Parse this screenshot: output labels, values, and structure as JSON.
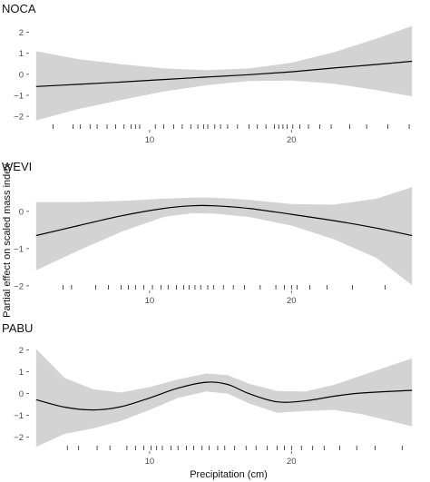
{
  "chart_data": [
    {
      "type": "line",
      "title": "NOCA",
      "xlabel": "",
      "ylabel": "",
      "xlim": [
        1.5,
        29
      ],
      "ylim": [
        -2.6,
        2.5
      ],
      "yticks": [
        -2,
        -1,
        0,
        1,
        2
      ],
      "xticks": [
        10,
        20
      ],
      "fit": {
        "x": [
          2,
          5,
          8,
          11,
          14,
          17,
          20,
          23,
          26,
          28.5
        ],
        "y": [
          -0.58,
          -0.48,
          -0.37,
          -0.25,
          -0.13,
          -0.02,
          0.12,
          0.3,
          0.47,
          0.62
        ]
      },
      "ci_upper": [
        1.1,
        0.72,
        0.48,
        0.28,
        0.2,
        0.28,
        0.55,
        1.05,
        1.7,
        2.3
      ],
      "ci_lower": [
        -2.2,
        -1.65,
        -1.22,
        -0.82,
        -0.52,
        -0.32,
        -0.3,
        -0.45,
        -0.75,
        -1.05
      ],
      "rug": [
        3.2,
        4.6,
        5.1,
        5.8,
        6.3,
        7.0,
        7.6,
        8.2,
        8.7,
        9.0,
        9.3,
        10.4,
        11.0,
        11.7,
        12.3,
        12.9,
        13.4,
        13.8,
        14.1,
        14.6,
        15.0,
        15.5,
        16.2,
        17.0,
        17.6,
        18.2,
        18.8,
        19.1,
        19.4,
        19.7,
        20.1,
        20.6,
        21.2,
        22.0,
        22.8,
        24.1,
        25.3,
        26.8,
        28.3
      ]
    },
    {
      "type": "line",
      "title": "WEVI",
      "xlabel": "",
      "ylabel": "",
      "xlim": [
        1.5,
        29
      ],
      "ylim": [
        -2.1,
        0.85
      ],
      "yticks": [
        -2,
        -1,
        0
      ],
      "xticks": [
        10,
        20
      ],
      "fit": {
        "x": [
          2,
          5,
          8,
          11,
          13,
          14.5,
          17,
          20,
          23,
          26,
          28.5
        ],
        "y": [
          -0.65,
          -0.38,
          -0.12,
          0.08,
          0.15,
          0.15,
          0.08,
          -0.08,
          -0.25,
          -0.45,
          -0.65
        ]
      },
      "ci_upper": [
        0.25,
        0.25,
        0.28,
        0.34,
        0.37,
        0.37,
        0.31,
        0.2,
        0.18,
        0.34,
        0.65
      ],
      "ci_lower": [
        -1.58,
        -1.05,
        -0.55,
        -0.15,
        -0.05,
        -0.06,
        -0.15,
        -0.38,
        -0.75,
        -1.25,
        -1.98
      ],
      "rug": [
        3.9,
        4.5,
        6.2,
        7.1,
        8.0,
        8.5,
        9.0,
        9.6,
        10.2,
        10.8,
        11.3,
        11.9,
        12.4,
        12.8,
        13.2,
        13.6,
        14.1,
        14.5,
        15.2,
        15.9,
        16.7,
        17.8,
        18.9,
        19.5,
        20.0,
        20.4,
        21.3,
        22.5,
        24.3,
        26.6
      ]
    },
    {
      "type": "line",
      "title": "PABU",
      "xlabel": "Precipitation (cm)",
      "ylabel": "",
      "xlim": [
        1.5,
        29
      ],
      "ylim": [
        -2.6,
        2.4
      ],
      "yticks": [
        -2,
        -1,
        0,
        1,
        2
      ],
      "xticks": [
        10,
        20
      ],
      "fit": {
        "x": [
          2,
          4,
          6,
          8,
          10,
          12,
          14,
          15.5,
          17,
          19,
          21,
          23,
          25,
          28.5
        ],
        "y": [
          -0.28,
          -0.62,
          -0.75,
          -0.6,
          -0.2,
          0.25,
          0.52,
          0.42,
          0.0,
          -0.38,
          -0.33,
          -0.12,
          0.03,
          0.15
        ]
      },
      "ci_upper": [
        2.05,
        0.72,
        0.2,
        0.05,
        0.3,
        0.65,
        0.92,
        0.85,
        0.45,
        0.12,
        0.1,
        0.4,
        0.85,
        1.62
      ],
      "ci_lower": [
        -2.45,
        -1.85,
        -1.6,
        -1.25,
        -0.75,
        -0.2,
        0.1,
        0.0,
        -0.45,
        -0.88,
        -0.8,
        -0.75,
        -0.95,
        -1.5
      ],
      "rug": [
        4.2,
        5.0,
        6.3,
        7.2,
        8.4,
        9.0,
        9.6,
        10.1,
        10.5,
        10.9,
        11.5,
        12.0,
        12.6,
        13.1,
        13.7,
        14.2,
        14.8,
        15.3,
        16.0,
        16.8,
        17.5,
        18.3,
        19.0,
        19.5,
        20.0,
        20.7,
        21.5,
        22.3,
        23.4,
        24.6,
        25.9,
        27.8
      ]
    }
  ],
  "shared": {
    "ylabel": "Partial effect on scaled mass index",
    "xlabel": "Precipitation (cm)"
  }
}
